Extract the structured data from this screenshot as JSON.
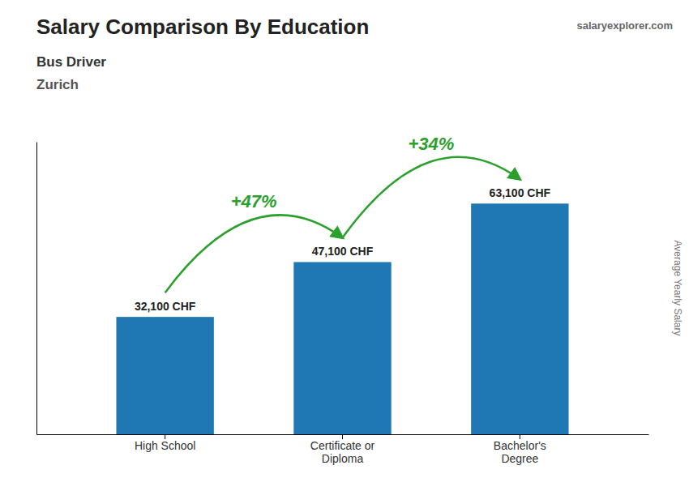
{
  "chart_data": {
    "type": "bar",
    "title": "Salary Comparison By Education",
    "subtitle": [
      "Bus Driver",
      "Zurich"
    ],
    "categories": [
      "High School",
      "Certificate or\nDiploma",
      "Bachelor's\nDegree"
    ],
    "values": [
      32100,
      47100,
      63100
    ],
    "value_labels": [
      "32,100 CHF",
      "47,100 CHF",
      "63,100 CHF"
    ],
    "data_labels": true,
    "annotations": [
      "+47%",
      "+34%"
    ],
    "source": "salaryexplorer.com",
    "ylabel": "Average Yearly Salary",
    "ylim": [
      0,
      80000
    ],
    "tick_labels": "x",
    "grid": false
  }
}
